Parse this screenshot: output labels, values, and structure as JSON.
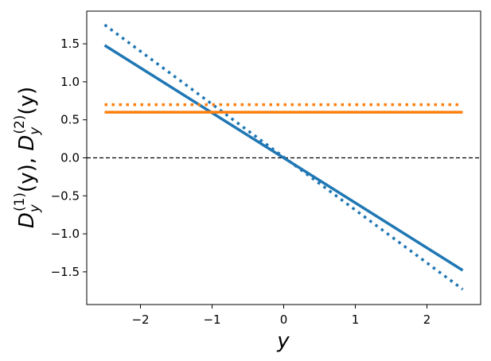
{
  "chart_data": {
    "type": "line",
    "xlabel": "y",
    "ylabel": {
      "text": "D_y^{(1)}(y), D_y^{(2)}(y)",
      "part1_base": "D",
      "part1_sub": "y",
      "part1_sup": "(1)",
      "part1_arg": "(y), ",
      "part2_base": "D",
      "part2_sub": "y",
      "part2_sup": "(2)",
      "part2_arg": "(y)"
    },
    "xlim": [
      -2.75,
      2.75
    ],
    "ylim": [
      -1.93,
      1.93
    ],
    "xticks": [
      -2,
      -1,
      0,
      1,
      2
    ],
    "xtick_labels": [
      "−2",
      "−1",
      "0",
      "1",
      "2"
    ],
    "yticks": [
      -1.5,
      -1.0,
      -0.5,
      0.0,
      0.5,
      1.0,
      1.5
    ],
    "ytick_labels": [
      "−1.5",
      "−1.0",
      "−0.5",
      "0.0",
      "0.5",
      "1.0",
      "1.5"
    ],
    "grid": false,
    "series": [
      {
        "x": [
          -2.5,
          2.5
        ],
        "y": [
          1.48,
          -1.48
        ],
        "color": "#1f77b4",
        "style": "solid"
      },
      {
        "x": [
          -2.5,
          2.5
        ],
        "y": [
          1.75,
          -1.73
        ],
        "color": "#1f77b4",
        "style": "dotted"
      },
      {
        "x": [
          -2.5,
          2.5
        ],
        "y": [
          0.6,
          0.6
        ],
        "color": "#ff7f0e",
        "style": "solid"
      },
      {
        "x": [
          -2.5,
          2.5
        ],
        "y": [
          0.7,
          0.7
        ],
        "color": "#ff7f0e",
        "style": "dotted"
      }
    ],
    "reference_line": {
      "y": 0.0,
      "color": "#000000",
      "style": "dashed"
    }
  }
}
